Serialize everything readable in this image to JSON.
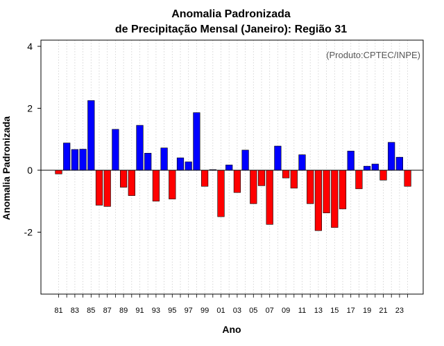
{
  "colors": {
    "positive": "#0000ff",
    "negative": "#ff0000",
    "grid": "#cccccc",
    "credit": "#555555"
  },
  "chart_data": {
    "type": "bar",
    "title": "Anomalia Padronizada",
    "subtitle": "de Precipitação Mensal (Janeiro): Região 31",
    "xlabel": "Ano",
    "ylabel": "Anomalia Padronizada",
    "annotation": "(Produto:CPTEC/INPE)",
    "ylim": [
      -4,
      4.2
    ],
    "yticks": [
      -2,
      0,
      2,
      4
    ],
    "grid": true,
    "categories": [
      "81",
      "82",
      "83",
      "84",
      "85",
      "86",
      "87",
      "88",
      "89",
      "90",
      "91",
      "92",
      "93",
      "94",
      "95",
      "96",
      "97",
      "98",
      "99",
      "00",
      "01",
      "02",
      "03",
      "04",
      "05",
      "06",
      "07",
      "08",
      "09",
      "10",
      "11",
      "12",
      "13",
      "14",
      "15",
      "16",
      "17",
      "18",
      "19",
      "20",
      "21",
      "22",
      "23",
      "24"
    ],
    "xtick_labels": [
      "81",
      "83",
      "85",
      "87",
      "89",
      "91",
      "93",
      "95",
      "97",
      "99",
      "01",
      "03",
      "05",
      "07",
      "09",
      "11",
      "13",
      "15",
      "17",
      "19",
      "21",
      "23"
    ],
    "values": [
      -0.12,
      0.88,
      0.67,
      0.68,
      2.25,
      -1.13,
      -1.17,
      1.32,
      -0.55,
      -0.82,
      1.45,
      0.55,
      -1.0,
      0.72,
      -0.93,
      0.4,
      0.27,
      1.86,
      -0.52,
      0.02,
      -1.5,
      0.17,
      -0.72,
      0.65,
      -1.08,
      -0.5,
      -1.75,
      0.78,
      -0.25,
      -0.58,
      0.5,
      -1.08,
      -1.95,
      -1.38,
      -1.85,
      -1.25,
      0.62,
      -0.6,
      0.13,
      0.2,
      -0.32,
      0.9,
      0.42,
      -0.52
    ]
  }
}
